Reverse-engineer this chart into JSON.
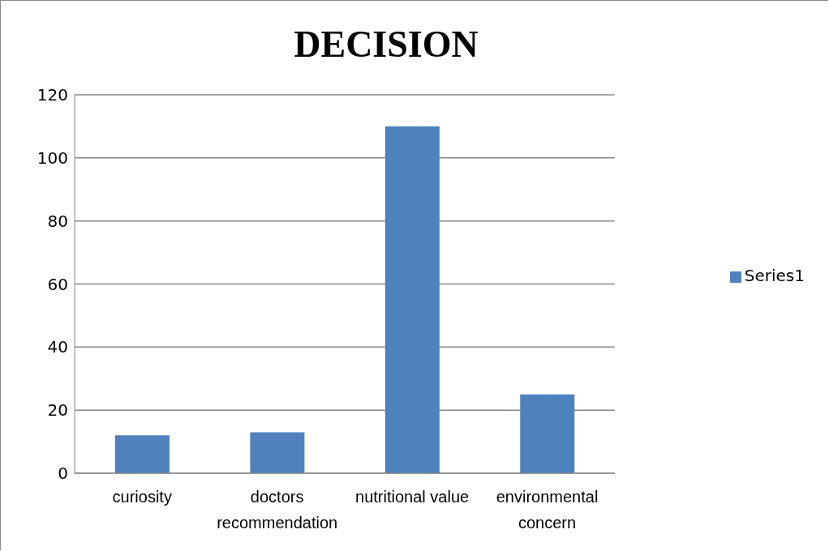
{
  "chart_data": {
    "type": "bar",
    "title": "DECISION",
    "categories": [
      "curiosity",
      "doctors recommendation",
      "nutritional value",
      "environmental concern"
    ],
    "series": [
      {
        "name": "Series1",
        "color": "#4f81bd",
        "values": [
          12,
          13,
          110,
          25
        ]
      }
    ],
    "ylim": [
      0,
      120
    ],
    "yticks": [
      0,
      20,
      40,
      60,
      80,
      100,
      120
    ],
    "grid": "y",
    "legend": "right"
  }
}
